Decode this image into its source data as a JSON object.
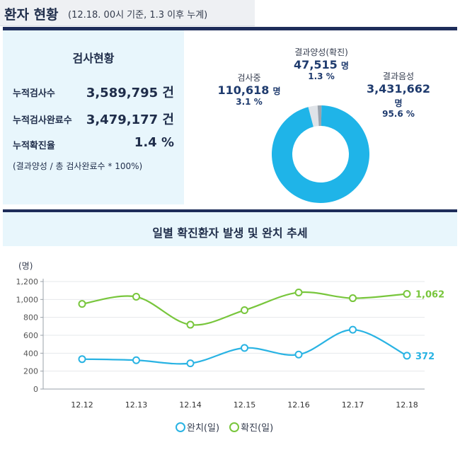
{
  "header": {
    "title": "환자 현황",
    "subtitle": "(12.18. 00시 기준, 1.3 이후 누계)"
  },
  "tests": {
    "heading": "검사현황",
    "items": [
      {
        "label": "누적검사수",
        "value": "3,589,795 건"
      },
      {
        "label": "누적검사완료수",
        "value": "3,479,177 건"
      },
      {
        "label": "누적확진율",
        "value": "1.4 %"
      }
    ],
    "note": "(결과양성 / 총 검사완료수 * 100%)"
  },
  "donut": {
    "segments": [
      {
        "name": "결과양성(확진)",
        "count": "47,515",
        "unit": "명",
        "pct_label": "1.3 %",
        "percent": 1.3,
        "color": "#9aa3ad"
      },
      {
        "name": "검사중",
        "count": "110,618",
        "unit": "명",
        "pct_label": "3.1 %",
        "percent": 3.1,
        "color": "#dfe3e8"
      },
      {
        "name": "결과음성",
        "count": "3,431,662",
        "unit": "명",
        "pct_label": "95.6 %",
        "percent": 95.6,
        "color": "#1fb4e8"
      }
    ]
  },
  "trend": {
    "title": "일별 확진환자 발생 및 완치 추세",
    "unit_label": "(명)",
    "legend": [
      "완치(일)",
      "확진(일)"
    ]
  },
  "colors": {
    "recovered": "#29b3e3",
    "confirmed": "#78c63c"
  },
  "chart_data": {
    "type": "line",
    "x": [
      "12.12",
      "12.13",
      "12.14",
      "12.15",
      "12.16",
      "12.17",
      "12.18"
    ],
    "ylim": [
      0,
      1200
    ],
    "yticks": [
      "0",
      "200",
      "400",
      "600",
      "800",
      "1,000",
      "1,200"
    ],
    "grid": true,
    "series": [
      {
        "name": "완치(일)",
        "values": [
          334,
          322,
          287,
          459,
          385,
          662,
          372
        ],
        "end_label": "372"
      },
      {
        "name": "확진(일)",
        "values": [
          950,
          1030,
          718,
          880,
          1078,
          1014,
          1062
        ],
        "end_label": "1,062"
      }
    ]
  }
}
